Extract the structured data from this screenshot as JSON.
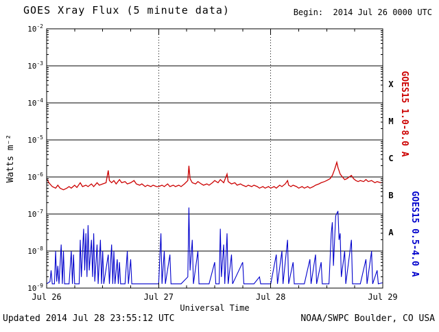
{
  "header": {
    "title": "GOES Xray Flux (5 minute data)",
    "begin_label": "Begin:  2014 Jul 26 0000 UTC"
  },
  "footer": {
    "updated": "Updated 2014 Jul 28 23:55:12 UTC",
    "source": "NOAA/SWPC Boulder, CO USA"
  },
  "chart_data": {
    "type": "line",
    "title": "GOES Xray Flux (5 minute data)",
    "xlabel": "Universal Time",
    "ylabel": "Watts m⁻²",
    "x_range_days": [
      0,
      3
    ],
    "x_ticks": [
      {
        "t": 0,
        "label": "Jul 26"
      },
      {
        "t": 1,
        "label": "Jul 27"
      },
      {
        "t": 2,
        "label": "Jul 28"
      },
      {
        "t": 3,
        "label": "Jul 29"
      }
    ],
    "y_log_range": [
      -9,
      -2
    ],
    "y_ticks_exponents": [
      -2,
      -3,
      -4,
      -5,
      -6,
      -7,
      -8,
      -9
    ],
    "grid": {
      "h_lines_exponents": [
        -3,
        -4,
        -5,
        -6,
        -7,
        -8
      ],
      "v_dotted_days": [
        1,
        2
      ]
    },
    "flare_classes": [
      {
        "label": "X",
        "exp": -3.5
      },
      {
        "label": "M",
        "exp": -4.5
      },
      {
        "label": "C",
        "exp": -5.5
      },
      {
        "label": "B",
        "exp": -6.5
      },
      {
        "label": "A",
        "exp": -7.5
      }
    ],
    "series": [
      {
        "name": "GOES15 1.0-8.0 A",
        "color": "#cc0000",
        "points": [
          [
            0.0,
            9e-07
          ],
          [
            0.02,
            7e-07
          ],
          [
            0.05,
            5.5e-07
          ],
          [
            0.08,
            5e-07
          ],
          [
            0.1,
            6e-07
          ],
          [
            0.12,
            5e-07
          ],
          [
            0.15,
            4.5e-07
          ],
          [
            0.18,
            5e-07
          ],
          [
            0.2,
            5.5e-07
          ],
          [
            0.22,
            5e-07
          ],
          [
            0.25,
            6e-07
          ],
          [
            0.27,
            5.2e-07
          ],
          [
            0.3,
            7e-07
          ],
          [
            0.32,
            5.5e-07
          ],
          [
            0.35,
            6e-07
          ],
          [
            0.37,
            5.5e-07
          ],
          [
            0.4,
            6.5e-07
          ],
          [
            0.42,
            5.5e-07
          ],
          [
            0.45,
            7e-07
          ],
          [
            0.47,
            6e-07
          ],
          [
            0.5,
            6.5e-07
          ],
          [
            0.53,
            7e-07
          ],
          [
            0.55,
            1.5e-06
          ],
          [
            0.56,
            8e-07
          ],
          [
            0.58,
            7e-07
          ],
          [
            0.6,
            8e-07
          ],
          [
            0.62,
            6.5e-07
          ],
          [
            0.65,
            8.5e-07
          ],
          [
            0.67,
            7e-07
          ],
          [
            0.7,
            7.5e-07
          ],
          [
            0.72,
            6.5e-07
          ],
          [
            0.75,
            7e-07
          ],
          [
            0.78,
            8e-07
          ],
          [
            0.8,
            6.5e-07
          ],
          [
            0.83,
            6e-07
          ],
          [
            0.85,
            6.5e-07
          ],
          [
            0.88,
            5.5e-07
          ],
          [
            0.9,
            6e-07
          ],
          [
            0.93,
            5.5e-07
          ],
          [
            0.95,
            6e-07
          ],
          [
            0.98,
            5.5e-07
          ],
          [
            1.0,
            5.5e-07
          ],
          [
            1.03,
            6e-07
          ],
          [
            1.05,
            5.5e-07
          ],
          [
            1.08,
            6.5e-07
          ],
          [
            1.1,
            5.5e-07
          ],
          [
            1.13,
            6e-07
          ],
          [
            1.15,
            5.5e-07
          ],
          [
            1.18,
            6e-07
          ],
          [
            1.2,
            5.5e-07
          ],
          [
            1.23,
            6.5e-07
          ],
          [
            1.26,
            8e-07
          ],
          [
            1.27,
            2e-06
          ],
          [
            1.28,
            9e-07
          ],
          [
            1.3,
            7e-07
          ],
          [
            1.33,
            6.5e-07
          ],
          [
            1.35,
            7.5e-07
          ],
          [
            1.38,
            6.5e-07
          ],
          [
            1.4,
            6e-07
          ],
          [
            1.43,
            6.5e-07
          ],
          [
            1.45,
            6e-07
          ],
          [
            1.48,
            7e-07
          ],
          [
            1.5,
            8e-07
          ],
          [
            1.53,
            7e-07
          ],
          [
            1.55,
            8.5e-07
          ],
          [
            1.58,
            7e-07
          ],
          [
            1.61,
            1.2e-06
          ],
          [
            1.62,
            7.5e-07
          ],
          [
            1.65,
            6.5e-07
          ],
          [
            1.68,
            7e-07
          ],
          [
            1.7,
            6e-07
          ],
          [
            1.73,
            6.5e-07
          ],
          [
            1.75,
            6e-07
          ],
          [
            1.78,
            5.5e-07
          ],
          [
            1.8,
            6e-07
          ],
          [
            1.83,
            5.5e-07
          ],
          [
            1.85,
            6e-07
          ],
          [
            1.88,
            5.5e-07
          ],
          [
            1.9,
            5e-07
          ],
          [
            1.93,
            5.5e-07
          ],
          [
            1.95,
            5e-07
          ],
          [
            1.98,
            5.5e-07
          ],
          [
            2.0,
            5e-07
          ],
          [
            2.03,
            5.5e-07
          ],
          [
            2.05,
            5e-07
          ],
          [
            2.08,
            6e-07
          ],
          [
            2.1,
            5.5e-07
          ],
          [
            2.13,
            6.5e-07
          ],
          [
            2.15,
            8e-07
          ],
          [
            2.16,
            6e-07
          ],
          [
            2.18,
            5.5e-07
          ],
          [
            2.2,
            6e-07
          ],
          [
            2.23,
            5.5e-07
          ],
          [
            2.25,
            5e-07
          ],
          [
            2.28,
            5.5e-07
          ],
          [
            2.3,
            5e-07
          ],
          [
            2.33,
            5.5e-07
          ],
          [
            2.35,
            5e-07
          ],
          [
            2.38,
            5.5e-07
          ],
          [
            2.4,
            6e-07
          ],
          [
            2.43,
            6.5e-07
          ],
          [
            2.45,
            7e-07
          ],
          [
            2.48,
            7.5e-07
          ],
          [
            2.5,
            8e-07
          ],
          [
            2.53,
            9e-07
          ],
          [
            2.55,
            1.1e-06
          ],
          [
            2.57,
            1.6e-06
          ],
          [
            2.59,
            2.5e-06
          ],
          [
            2.6,
            1.8e-06
          ],
          [
            2.62,
            1.2e-06
          ],
          [
            2.64,
            1e-06
          ],
          [
            2.66,
            8.5e-07
          ],
          [
            2.68,
            9e-07
          ],
          [
            2.7,
            1e-06
          ],
          [
            2.72,
            1.1e-06
          ],
          [
            2.74,
            9e-07
          ],
          [
            2.76,
            8e-07
          ],
          [
            2.78,
            7.5e-07
          ],
          [
            2.8,
            8e-07
          ],
          [
            2.83,
            7.5e-07
          ],
          [
            2.85,
            8.5e-07
          ],
          [
            2.87,
            7.5e-07
          ],
          [
            2.9,
            8e-07
          ],
          [
            2.93,
            7e-07
          ],
          [
            2.95,
            7.5e-07
          ],
          [
            2.98,
            7e-07
          ],
          [
            3.0,
            7e-07
          ]
        ]
      },
      {
        "name": "GOES15 0.5-4.0 A",
        "color": "#0000cc",
        "points": [
          [
            0.0,
            1.3e-09
          ],
          [
            0.03,
            1.5e-09
          ],
          [
            0.04,
            3e-09
          ],
          [
            0.05,
            1.3e-09
          ],
          [
            0.07,
            1.3e-09
          ],
          [
            0.08,
            1e-08
          ],
          [
            0.09,
            1.5e-09
          ],
          [
            0.1,
            4e-09
          ],
          [
            0.11,
            1.3e-09
          ],
          [
            0.13,
            1.5e-08
          ],
          [
            0.14,
            1.3e-09
          ],
          [
            0.15,
            1e-08
          ],
          [
            0.16,
            1.3e-09
          ],
          [
            0.2,
            1.3e-09
          ],
          [
            0.22,
            1e-08
          ],
          [
            0.23,
            1.3e-09
          ],
          [
            0.24,
            8e-09
          ],
          [
            0.25,
            1.3e-09
          ],
          [
            0.29,
            1.3e-09
          ],
          [
            0.3,
            2e-08
          ],
          [
            0.31,
            2e-09
          ],
          [
            0.33,
            4e-08
          ],
          [
            0.34,
            3e-09
          ],
          [
            0.35,
            3e-08
          ],
          [
            0.36,
            2e-09
          ],
          [
            0.37,
            5e-08
          ],
          [
            0.38,
            3e-09
          ],
          [
            0.4,
            2e-08
          ],
          [
            0.41,
            2e-09
          ],
          [
            0.42,
            3e-08
          ],
          [
            0.43,
            1.5e-09
          ],
          [
            0.45,
            1.5e-08
          ],
          [
            0.46,
            1.3e-09
          ],
          [
            0.48,
            2e-08
          ],
          [
            0.49,
            1.3e-09
          ],
          [
            0.5,
            1e-08
          ],
          [
            0.51,
            1.3e-09
          ],
          [
            0.55,
            8e-09
          ],
          [
            0.56,
            1.3e-09
          ],
          [
            0.58,
            1.5e-08
          ],
          [
            0.59,
            1.3e-09
          ],
          [
            0.6,
            1e-08
          ],
          [
            0.61,
            1.3e-09
          ],
          [
            0.63,
            6e-09
          ],
          [
            0.64,
            1.3e-09
          ],
          [
            0.65,
            5e-09
          ],
          [
            0.66,
            1.3e-09
          ],
          [
            0.7,
            1.3e-09
          ],
          [
            0.72,
            1e-08
          ],
          [
            0.73,
            1.3e-09
          ],
          [
            0.75,
            6e-09
          ],
          [
            0.76,
            1.3e-09
          ],
          [
            0.85,
            1.3e-09
          ],
          [
            0.95,
            1.3e-09
          ],
          [
            1.0,
            1.3e-09
          ],
          [
            1.02,
            3e-08
          ],
          [
            1.03,
            1.3e-09
          ],
          [
            1.05,
            1e-08
          ],
          [
            1.06,
            1.3e-09
          ],
          [
            1.1,
            8e-09
          ],
          [
            1.11,
            1.3e-09
          ],
          [
            1.15,
            1.3e-09
          ],
          [
            1.2,
            1.3e-09
          ],
          [
            1.26,
            2e-09
          ],
          [
            1.27,
            1.5e-07
          ],
          [
            1.28,
            3e-09
          ],
          [
            1.3,
            2e-08
          ],
          [
            1.31,
            1.3e-09
          ],
          [
            1.35,
            1e-08
          ],
          [
            1.36,
            1.3e-09
          ],
          [
            1.45,
            1.3e-09
          ],
          [
            1.5,
            5e-09
          ],
          [
            1.51,
            1.3e-09
          ],
          [
            1.54,
            1.3e-09
          ],
          [
            1.55,
            4e-08
          ],
          [
            1.56,
            2e-09
          ],
          [
            1.58,
            1.5e-08
          ],
          [
            1.59,
            1.3e-09
          ],
          [
            1.61,
            3e-08
          ],
          [
            1.62,
            1.3e-09
          ],
          [
            1.65,
            8e-09
          ],
          [
            1.66,
            1.3e-09
          ],
          [
            1.75,
            5e-09
          ],
          [
            1.76,
            1.3e-09
          ],
          [
            1.85,
            1.3e-09
          ],
          [
            1.9,
            2e-09
          ],
          [
            1.91,
            1.3e-09
          ],
          [
            2.0,
            1.3e-09
          ],
          [
            2.05,
            8e-09
          ],
          [
            2.06,
            1.3e-09
          ],
          [
            2.1,
            1e-08
          ],
          [
            2.11,
            1.3e-09
          ],
          [
            2.15,
            2e-08
          ],
          [
            2.16,
            1.3e-09
          ],
          [
            2.2,
            5e-09
          ],
          [
            2.21,
            1.3e-09
          ],
          [
            2.3,
            1.3e-09
          ],
          [
            2.35,
            6e-09
          ],
          [
            2.36,
            1.3e-09
          ],
          [
            2.4,
            8e-09
          ],
          [
            2.41,
            1.3e-09
          ],
          [
            2.45,
            5e-09
          ],
          [
            2.46,
            1.3e-09
          ],
          [
            2.52,
            1.3e-09
          ],
          [
            2.54,
            3e-08
          ],
          [
            2.55,
            6e-08
          ],
          [
            2.56,
            4e-09
          ],
          [
            2.58,
            9e-08
          ],
          [
            2.6,
            1.2e-07
          ],
          [
            2.61,
            2e-08
          ],
          [
            2.62,
            3e-08
          ],
          [
            2.63,
            2e-09
          ],
          [
            2.66,
            1e-08
          ],
          [
            2.67,
            1.3e-09
          ],
          [
            2.72,
            2e-08
          ],
          [
            2.73,
            1.3e-09
          ],
          [
            2.8,
            1.3e-09
          ],
          [
            2.85,
            6e-09
          ],
          [
            2.86,
            1.3e-09
          ],
          [
            2.9,
            1e-08
          ],
          [
            2.91,
            1.3e-09
          ],
          [
            2.95,
            3e-09
          ],
          [
            2.96,
            1.3e-09
          ],
          [
            3.0,
            1.4e-09
          ]
        ]
      }
    ]
  }
}
